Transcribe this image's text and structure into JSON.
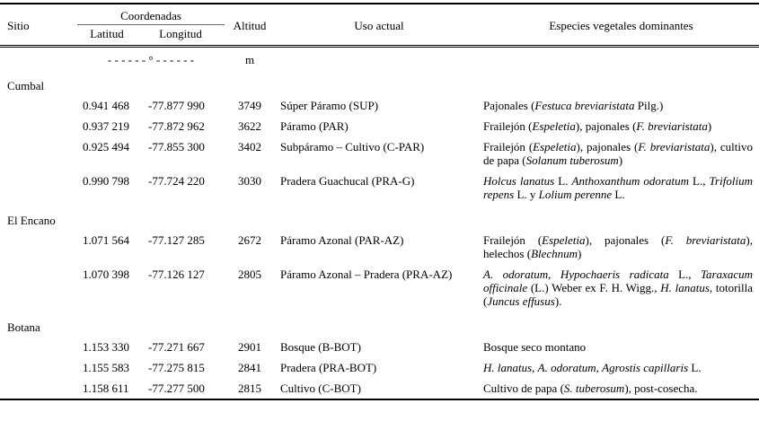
{
  "colors": {
    "text": "#000000",
    "background": "#ffffff",
    "rule": "#000000"
  },
  "table": {
    "headers": {
      "sitio": "Sitio",
      "coordenadas": "Coordenadas",
      "latitud": "Latitud",
      "longitud": "Longitud",
      "altitud": "Altitud",
      "uso": "Uso actual",
      "especies": "Especies vegetales dominantes"
    },
    "units": {
      "coordenadas": "- - - - - - ° - - - - - -",
      "altitud": "m"
    },
    "sections": [
      {
        "name": "Cumbal",
        "rows": [
          {
            "latitud": "0.941 468",
            "longitud": "-77.877 990",
            "altitud": "3749",
            "uso": "Súper Páramo (SUP)",
            "especies": [
              {
                "t": "Pajonales (",
                "i": false
              },
              {
                "t": "Festuca breviaristata",
                "i": true
              },
              {
                "t": " Pilg.)",
                "i": false
              }
            ]
          },
          {
            "latitud": "0.937 219",
            "longitud": "-77.872 962",
            "altitud": "3622",
            "uso": "Páramo (PAR)",
            "especies": [
              {
                "t": "Frailejón (",
                "i": false
              },
              {
                "t": "Espeletia",
                "i": true
              },
              {
                "t": "), pajonales (",
                "i": false
              },
              {
                "t": "F. breviaristata",
                "i": true
              },
              {
                "t": ")",
                "i": false
              }
            ]
          },
          {
            "latitud": "0.925 494",
            "longitud": "-77.855 300",
            "altitud": "3402",
            "uso": "Subpáramo – Cultivo (C-PAR)",
            "especies": [
              {
                "t": "Frailejón (",
                "i": false
              },
              {
                "t": "Espeletia",
                "i": true
              },
              {
                "t": "), pajonales (",
                "i": false
              },
              {
                "t": "F. breviaristata",
                "i": true
              },
              {
                "t": "), cultivo de papa (",
                "i": false
              },
              {
                "t": "Solanum tuberosum",
                "i": true
              },
              {
                "t": ")",
                "i": false
              }
            ]
          },
          {
            "latitud": "0.990 798",
            "longitud": "-77.724 220",
            "altitud": "3030",
            "uso": "Pradera Guachucal (PRA-G)",
            "especies": [
              {
                "t": "Holcus lanatus",
                "i": true
              },
              {
                "t": " L. ",
                "i": false
              },
              {
                "t": "Anthoxanthum odoratum",
                "i": true
              },
              {
                "t": " L., ",
                "i": false
              },
              {
                "t": "Trifolium repens",
                "i": true
              },
              {
                "t": " L. y ",
                "i": false
              },
              {
                "t": "Lolium perenne",
                "i": true
              },
              {
                "t": " L.",
                "i": false
              }
            ]
          }
        ]
      },
      {
        "name": "El Encano",
        "rows": [
          {
            "latitud": "1.071 564",
            "longitud": "-77.127 285",
            "altitud": "2672",
            "uso": "Páramo Azonal (PAR-AZ)",
            "especies": [
              {
                "t": "Frailejón (",
                "i": false
              },
              {
                "t": "Espeletia",
                "i": true
              },
              {
                "t": "), pajonales (",
                "i": false
              },
              {
                "t": "F. breviaristata",
                "i": true
              },
              {
                "t": "), helechos (",
                "i": false
              },
              {
                "t": "Blechnum",
                "i": true
              },
              {
                "t": ")",
                "i": false
              }
            ]
          },
          {
            "latitud": "1.070 398",
            "longitud": "-77.126 127",
            "altitud": "2805",
            "uso": "Páramo Azonal – Pradera (PRA-AZ)",
            "especies": [
              {
                "t": "A. odoratum",
                "i": true
              },
              {
                "t": ", ",
                "i": false
              },
              {
                "t": "Hypochaeris radicata",
                "i": true
              },
              {
                "t": " L., ",
                "i": false
              },
              {
                "t": "Taraxacum officinale",
                "i": true
              },
              {
                "t": " (L.) Weber ex F. H. Wigg., ",
                "i": false
              },
              {
                "t": "H. lanatus",
                "i": true
              },
              {
                "t": ", totorilla (",
                "i": false
              },
              {
                "t": "Juncus effusus",
                "i": true
              },
              {
                "t": ").",
                "i": false
              }
            ]
          }
        ]
      },
      {
        "name": "Botana",
        "rows": [
          {
            "latitud": "1.153 330",
            "longitud": "-77.271 667",
            "altitud": "2901",
            "uso": "Bosque (B-BOT)",
            "especies": [
              {
                "t": "Bosque seco montano",
                "i": false
              }
            ]
          },
          {
            "latitud": "1.155 583",
            "longitud": "-77.275 815",
            "altitud": "2841",
            "uso": "Pradera (PRA-BOT)",
            "especies": [
              {
                "t": "H. lanatus",
                "i": true
              },
              {
                "t": ", ",
                "i": false
              },
              {
                "t": "A. odoratum",
                "i": true
              },
              {
                "t": ", ",
                "i": false
              },
              {
                "t": "Agrostis capillaris",
                "i": true
              },
              {
                "t": " L.",
                "i": false
              }
            ]
          },
          {
            "latitud": "1.158 611",
            "longitud": "-77.277 500",
            "altitud": "2815",
            "uso": "Cultivo (C-BOT)",
            "especies": [
              {
                "t": "Cultivo de papa (",
                "i": false
              },
              {
                "t": "S. tuberosum",
                "i": true
              },
              {
                "t": "), post-cosecha.",
                "i": false
              }
            ]
          }
        ]
      }
    ]
  }
}
